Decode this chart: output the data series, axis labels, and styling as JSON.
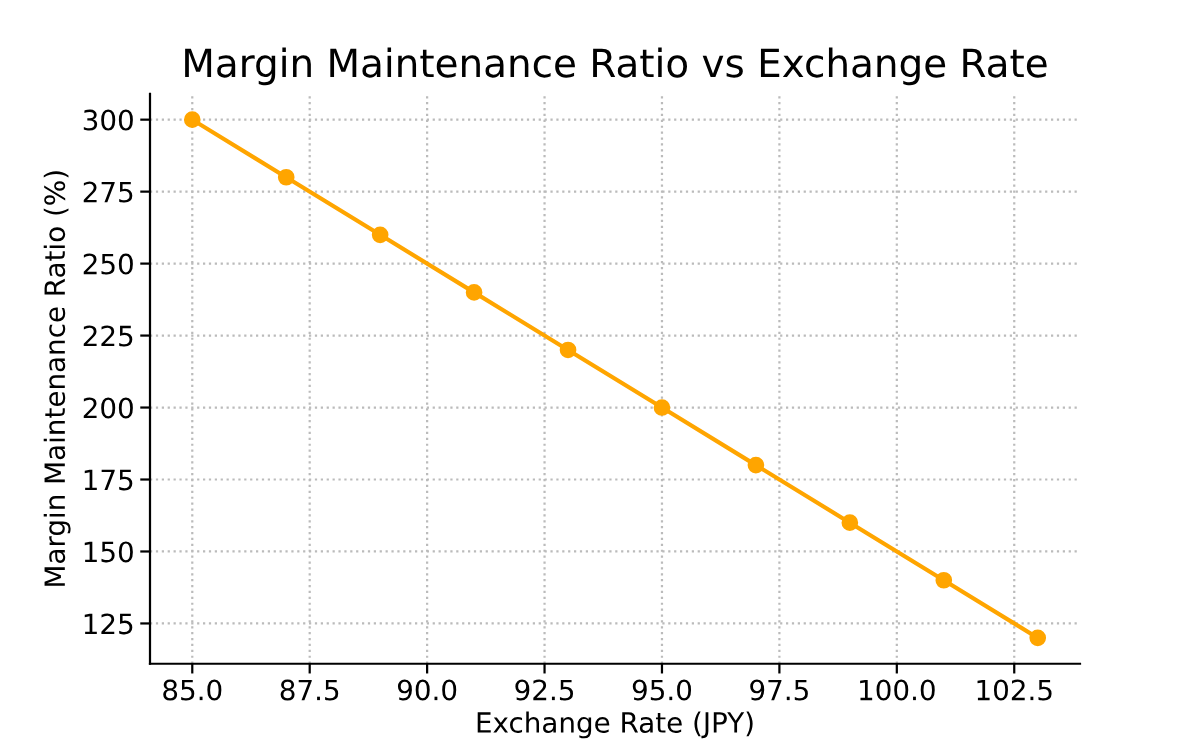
{
  "chart_data": {
    "type": "line",
    "title": "Margin Maintenance Ratio vs Exchange Rate",
    "xlabel": "Exchange Rate (JPY)",
    "ylabel": "Margin Maintenance Ratio (%)",
    "x": [
      85,
      87,
      89,
      91,
      93,
      95,
      97,
      99,
      101,
      103
    ],
    "series": [
      {
        "color": "#ffa500",
        "values": [
          300,
          280,
          260,
          240,
          220,
          200,
          180,
          160,
          140,
          120
        ]
      }
    ],
    "xlim": [
      84.1,
      103.9
    ],
    "ylim": [
      111,
      309
    ],
    "xticks": [
      {
        "value": 85,
        "label": "85.0"
      },
      {
        "value": 87.5,
        "label": "87.5"
      },
      {
        "value": 90,
        "label": "90.0"
      },
      {
        "value": 92.5,
        "label": "92.5"
      },
      {
        "value": 95,
        "label": "95.0"
      },
      {
        "value": 97.5,
        "label": "97.5"
      },
      {
        "value": 100,
        "label": "100.0"
      },
      {
        "value": 102.5,
        "label": "102.5"
      }
    ],
    "yticks": [
      125,
      150,
      175,
      200,
      225,
      250,
      275,
      300
    ],
    "grid": true,
    "marker": "circle",
    "line_style": "solid"
  }
}
